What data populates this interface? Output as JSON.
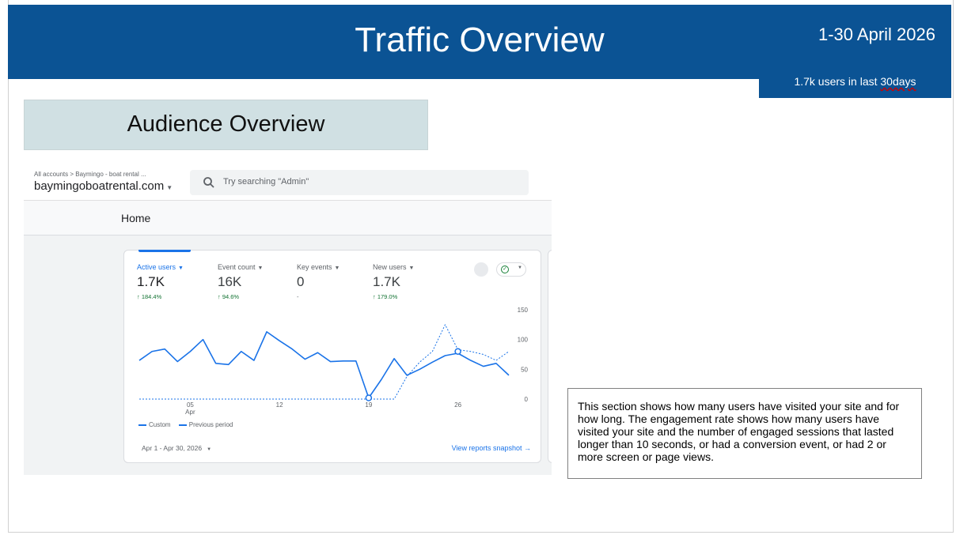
{
  "header": {
    "title": "Traffic Overview",
    "date_range": "1-30 April 2026",
    "users_summary_prefix": "1.7k users in last ",
    "users_summary_suffix": "30days"
  },
  "section_title": "Audience Overview",
  "analytics": {
    "breadcrumb": "All accounts > Baymingo - boat rental ...",
    "account_name": "baymingoboatrental.com",
    "search_placeholder": "Try searching \"Admin\"",
    "page_title": "Home",
    "metrics": [
      {
        "label": "Active users",
        "value": "1.7K",
        "change": "↑ 184.4%"
      },
      {
        "label": "Event count",
        "value": "16K",
        "change": "↑ 94.6%"
      },
      {
        "label": "Key events",
        "value": "0",
        "change": "-"
      },
      {
        "label": "New users",
        "value": "1.7K",
        "change": "↑ 179.0%"
      }
    ],
    "legend": {
      "current": "Custom",
      "previous": "Previous period"
    },
    "date_selector": "Apr 1 - Apr 30, 2026",
    "snapshot_link": "View reports snapshot",
    "colors": {
      "accent": "#1a73e8",
      "positive": "#137333",
      "header": "#0b5394"
    }
  },
  "chart_data": {
    "type": "line",
    "x": [
      1,
      2,
      3,
      4,
      5,
      6,
      7,
      8,
      9,
      10,
      11,
      12,
      13,
      14,
      15,
      16,
      17,
      18,
      19,
      20,
      21,
      22,
      23,
      24,
      25,
      26,
      27,
      28,
      29,
      30
    ],
    "x_ticks": [
      {
        "x": 5,
        "label": "05",
        "sub": "Apr"
      },
      {
        "x": 12,
        "label": "12"
      },
      {
        "x": 19,
        "label": "19"
      },
      {
        "x": 26,
        "label": "26"
      }
    ],
    "ylim": [
      0,
      150
    ],
    "y_ticks": [
      0,
      50,
      100,
      150
    ],
    "grid": false,
    "series": [
      {
        "name": "Custom",
        "style": "solid",
        "values": [
          65,
          80,
          84,
          63,
          80,
          100,
          60,
          58,
          80,
          65,
          113,
          98,
          84,
          67,
          78,
          63,
          64,
          64,
          2,
          33,
          68,
          40,
          50,
          62,
          73,
          77,
          65,
          55,
          60,
          40
        ]
      },
      {
        "name": "Previous period",
        "style": "dashed",
        "values": [
          0,
          0,
          0,
          0,
          0,
          0,
          0,
          0,
          0,
          0,
          0,
          0,
          0,
          0,
          0,
          0,
          0,
          0,
          0,
          0,
          0,
          38,
          62,
          80,
          125,
          83,
          80,
          75,
          65,
          80
        ]
      }
    ],
    "markers": [
      {
        "x": 19,
        "y": 2
      },
      {
        "x": 26,
        "y": 80
      }
    ]
  },
  "description": "This section shows how many users have visited your site and for how long. The engagement rate shows how many users have visited your site and the number of engaged sessions that lasted longer than 10 seconds, or had a conversion event, or had 2 or more screen or page views."
}
